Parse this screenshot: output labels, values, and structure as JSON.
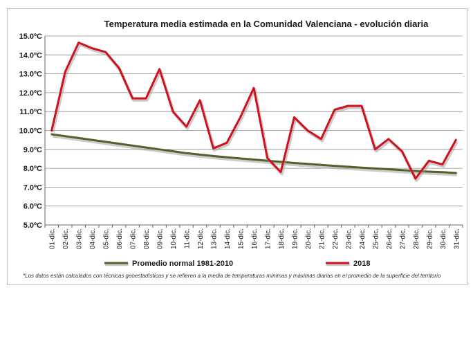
{
  "chart_data": {
    "type": "line",
    "title": "Temperatura media estimada en la Comunidad Valenciana - evolución diaria",
    "xlabel": "",
    "ylabel": "",
    "ylim": [
      5.0,
      15.0
    ],
    "y_ticks": [
      "5.0ºC",
      "6.0ºC",
      "7.0ºC",
      "8.0ºC",
      "9.0ºC",
      "10.0ºC",
      "11.0ºC",
      "12.0ºC",
      "13.0ºC",
      "14.0ºC",
      "15.0ºC"
    ],
    "categories": [
      "01-dic.",
      "02-dic.",
      "03-dic.",
      "04-dic.",
      "05-dic.",
      "06-dic.",
      "07-dic.",
      "08-dic.",
      "09-dic.",
      "10-dic.",
      "11-dic.",
      "12-dic.",
      "13-dic.",
      "14-dic.",
      "15-dic.",
      "16-dic.",
      "17-dic.",
      "18-dic.",
      "19-dic.",
      "20-dic.",
      "21-dic.",
      "22-dic.",
      "23-dic.",
      "24-dic.",
      "25-dic.",
      "26-dic.",
      "27-dic.",
      "28-dic.",
      "29-dic.",
      "30-dic.",
      "31-dic."
    ],
    "grid": true,
    "legend_position": "bottom",
    "series": [
      {
        "name": "Promedio normal 1981-2010",
        "color": "#4f6228",
        "values": [
          9.8,
          9.7,
          9.6,
          9.5,
          9.4,
          9.3,
          9.2,
          9.1,
          9.0,
          8.9,
          8.8,
          8.72,
          8.65,
          8.58,
          8.52,
          8.46,
          8.4,
          8.34,
          8.28,
          8.23,
          8.18,
          8.13,
          8.08,
          8.03,
          7.99,
          7.95,
          7.9,
          7.86,
          7.82,
          7.79,
          7.75
        ]
      },
      {
        "name": "2018",
        "color": "#d0101a",
        "values": [
          10.0,
          13.1,
          14.65,
          14.35,
          14.15,
          13.3,
          11.7,
          11.7,
          13.25,
          11.0,
          10.2,
          11.6,
          9.05,
          9.35,
          10.7,
          12.25,
          8.55,
          7.8,
          10.7,
          10.0,
          9.55,
          11.1,
          11.3,
          11.3,
          9.0,
          9.55,
          8.9,
          7.45,
          8.4,
          8.2,
          9.5
        ]
      }
    ]
  },
  "footnote": "*Los datos están calculados con técnicas geoestadísticas y se refieren a la media de temperaturas mínimas y máximas diarias en el promedio de la superficie del territorio"
}
